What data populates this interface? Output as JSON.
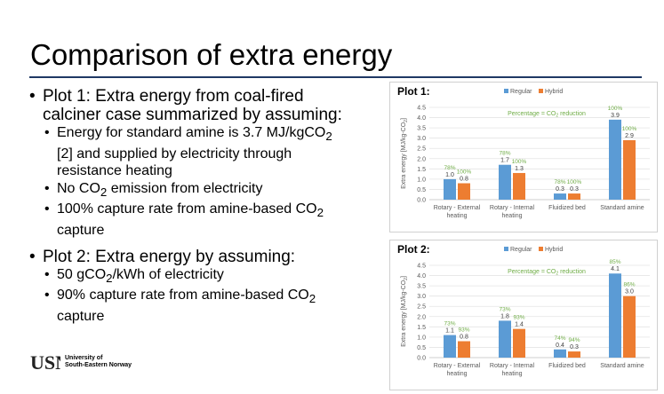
{
  "slide": {
    "title": "Comparison of extra energy",
    "plot1_bullet": {
      "head_line1": "Plot 1: Extra energy from coal-fired",
      "head_line2": "calciner case summarized by assuming:",
      "sub1_line1_pre": "Energy for standard amine is 3.7 MJ/kgCO",
      "sub1_line1_sub": "2",
      "sub1_line2": "[2] and supplied by electricity through",
      "sub1_line3": "resistance heating",
      "sub2_pre": "No CO",
      "sub2_sub": "2",
      "sub2_post": " emission from electricity",
      "sub3_line1_pre": "100% capture rate from amine-based CO",
      "sub3_line1_sub": "2",
      "sub3_line2": "capture"
    },
    "plot2_bullet": {
      "head": "Plot 2: Extra energy by assuming:",
      "sub1_pre": "50 gCO",
      "sub1_sub": "2",
      "sub1_post": "/kWh of electricity",
      "sub2_line1_pre": "90% capture rate from amine-based CO",
      "sub2_line1_sub": "2",
      "sub2_line2": "capture"
    },
    "logo": {
      "mark": "USN",
      "line1": "University of",
      "line2": "South-Eastern Norway"
    }
  },
  "colors": {
    "regular": "#5b9bd5",
    "hybrid": "#ed7d31",
    "annotation": "#70ad47",
    "title_rule": "#1f3864"
  },
  "chart_data": [
    {
      "type": "bar",
      "title": "Plot 1:",
      "ylabel_pre": "Extra energy [MJ/kg-CO",
      "ylabel_sub": "2",
      "ylabel_post": "]",
      "ylim": [
        0,
        4.5
      ],
      "yticks": [
        "0.0",
        "0.5",
        "1.0",
        "1.5",
        "2.0",
        "2.5",
        "3.0",
        "3.5",
        "4.0",
        "4.5"
      ],
      "categories": [
        [
          "Rotary - External",
          "heating"
        ],
        [
          "Rotary - Internal",
          "heating"
        ],
        [
          "Fluidized bed"
        ],
        [
          "Standard amine"
        ]
      ],
      "series": [
        {
          "name": "Regular",
          "values": [
            1.0,
            1.7,
            0.3,
            3.9
          ],
          "labels": [
            "1.0",
            "1.7",
            "0.3",
            "3.9"
          ],
          "pct": [
            "78%",
            "78%",
            "78%",
            "100%"
          ]
        },
        {
          "name": "Hybrid",
          "values": [
            0.8,
            1.3,
            0.3,
            2.9
          ],
          "labels": [
            "0.8",
            "1.3",
            "0.3",
            "2.9"
          ],
          "pct": [
            "100%",
            "100%",
            "100%",
            "100%"
          ]
        }
      ],
      "annotation_pre": "Percentage = CO",
      "annotation_sub": "2",
      "annotation_post": " reduction",
      "legend": "top",
      "grid": true
    },
    {
      "type": "bar",
      "title": "Plot 2:",
      "ylabel_pre": "Extra energy [MJ/kg-CO",
      "ylabel_sub": "2",
      "ylabel_post": "]",
      "ylim": [
        0,
        4.5
      ],
      "yticks": [
        "0.0",
        "0.5",
        "1.0",
        "1.5",
        "2.0",
        "2.5",
        "3.0",
        "3.5",
        "4.0",
        "4.5"
      ],
      "categories": [
        [
          "Rotary - External",
          "heating"
        ],
        [
          "Rotary - Internal",
          "heating"
        ],
        [
          "Fluidized bed"
        ],
        [
          "Standard amine"
        ]
      ],
      "series": [
        {
          "name": "Regular",
          "values": [
            1.1,
            1.8,
            0.4,
            4.1
          ],
          "labels": [
            "1.1",
            "1.8",
            "0.4",
            "4.1"
          ],
          "pct": [
            "73%",
            "73%",
            "74%",
            "85%"
          ]
        },
        {
          "name": "Hybrid",
          "values": [
            0.8,
            1.4,
            0.3,
            3.0
          ],
          "labels": [
            "0.8",
            "1.4",
            "0.3",
            "3.0"
          ],
          "pct": [
            "93%",
            "93%",
            "94%",
            "86%"
          ]
        }
      ],
      "annotation_pre": "Percentage = CO",
      "annotation_sub": "2",
      "annotation_post": " reduction",
      "legend": "top",
      "grid": true
    }
  ]
}
